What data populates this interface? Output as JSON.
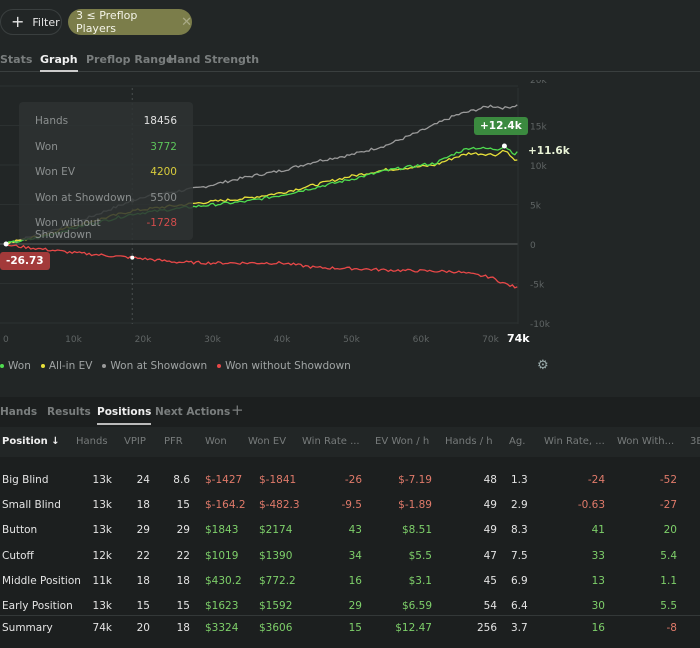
{
  "toolbar": {
    "filter_label": "Filter",
    "filter_chip": "3 ≤ Preflop Players"
  },
  "tabs": [
    "Stats",
    "Graph",
    "Preflop Range",
    "Hand Strength"
  ],
  "active_tab": "Graph",
  "tooltip": {
    "rows": [
      {
        "label": "Hands",
        "value": "18456",
        "color": "#e0e0e0"
      },
      {
        "label": "Won",
        "value": "3772",
        "color": "#5cc45a"
      },
      {
        "label": "Won EV",
        "value": "4200",
        "color": "#d8cc3c"
      },
      {
        "label": "Won at Showdown",
        "value": "5500",
        "color": "#8a8e8e"
      },
      {
        "label": "Won without Showdown",
        "value": "-1728",
        "color": "#d24c4c"
      }
    ]
  },
  "badges": {
    "start": "-26.73",
    "peak": "+12.4k",
    "end": "+11.6k"
  },
  "legend": [
    {
      "label": "Won",
      "color": "#4fdc4f"
    },
    {
      "label": "All-in EV",
      "color": "#e8e03a"
    },
    {
      "label": "Won at Showdown",
      "color": "#9a9a9a"
    },
    {
      "label": "Won without Showdown",
      "color": "#e84848"
    }
  ],
  "chart_data": {
    "type": "line",
    "x_ticks": [
      "0",
      "10k",
      "20k",
      "30k",
      "40k",
      "50k",
      "60k",
      "70k",
      "74k"
    ],
    "y_ticks": [
      "20k",
      "15k",
      "10k",
      "5k",
      "0",
      "-5k",
      "-10k"
    ],
    "xlim": [
      0,
      74000
    ],
    "ylim": [
      -10000,
      20000
    ],
    "series": [
      {
        "name": "Won at Showdown",
        "color": "#9a9a9a",
        "x": [
          0,
          5,
          10,
          18.5,
          20,
          28,
          35,
          40,
          45,
          50,
          55,
          60,
          65,
          70,
          72,
          74
        ],
        "y": [
          0,
          1.2,
          2.6,
          5.5,
          6,
          7.1,
          8.5,
          9.3,
          10.5,
          11.3,
          12.5,
          14.3,
          16.3,
          17.5,
          17.2,
          17.6
        ]
      },
      {
        "name": "All-in EV",
        "color": "#e8e03a",
        "x": [
          0,
          5,
          10,
          18.5,
          28,
          35,
          40,
          50,
          55,
          60,
          62,
          65,
          67,
          71,
          72,
          73.5,
          74
        ],
        "y": [
          0,
          1,
          2.3,
          4.2,
          5.2,
          5.8,
          6.5,
          8.6,
          9.4,
          9.8,
          10,
          11,
          11.5,
          11.3,
          12,
          10.5,
          10.9
        ]
      },
      {
        "name": "Won",
        "color": "#4fdc4f",
        "x": [
          0,
          5,
          10,
          18.5,
          28,
          35,
          40,
          50,
          55,
          60,
          62,
          65,
          67,
          71,
          72,
          73.5,
          74
        ],
        "y": [
          0,
          0.8,
          2,
          3.8,
          4.8,
          5.4,
          6.2,
          8.2,
          9.3,
          10,
          10.2,
          11.5,
          12.2,
          12,
          12.4,
          11.4,
          11.6
        ]
      },
      {
        "name": "Won without Showdown",
        "color": "#e84848",
        "x": [
          0,
          1,
          5,
          10,
          18.5,
          25,
          30,
          40,
          45,
          50,
          55,
          60,
          65,
          70,
          72,
          74
        ],
        "y": [
          0,
          -0.2,
          -0.6,
          -1.1,
          -1.73,
          -2.3,
          -2.4,
          -2.4,
          -3,
          -3.1,
          -3.3,
          -3.4,
          -3.5,
          -4.2,
          -5,
          -5.6
        ]
      }
    ],
    "crosshair_x": 18.456
  },
  "bottom_tabs": [
    "Hands",
    "Results",
    "Positions",
    "Next Actions"
  ],
  "table": {
    "columns": [
      "Position ↓",
      "Hands",
      "VPIP",
      "PFR",
      "Won",
      "Won EV",
      "Win Rate ...",
      "EV Won / h",
      "Hands / h",
      "Ag.",
      "Win Rate, ...",
      "Won With...",
      "3B"
    ],
    "rows": [
      [
        "Big Blind",
        "13k",
        "24",
        "8.6",
        "$-1427",
        "$-1841",
        "-26",
        "$-7.19",
        "48",
        "1.3",
        "-24",
        "-52"
      ],
      [
        "Small Blind",
        "13k",
        "18",
        "15",
        "$-164.2",
        "$-482.3",
        "-9.5",
        "$-1.89",
        "49",
        "2.9",
        "-0.63",
        "-27"
      ],
      [
        "Button",
        "13k",
        "29",
        "29",
        "$1843",
        "$2174",
        "43",
        "$8.51",
        "49",
        "8.3",
        "41",
        "20"
      ],
      [
        "Cutoff",
        "12k",
        "22",
        "22",
        "$1019",
        "$1390",
        "34",
        "$5.5",
        "47",
        "7.5",
        "33",
        "5.4"
      ],
      [
        "Middle Position",
        "11k",
        "18",
        "18",
        "$430.2",
        "$772.2",
        "16",
        "$3.1",
        "45",
        "6.9",
        "13",
        "1.1"
      ],
      [
        "Early Position",
        "13k",
        "15",
        "15",
        "$1623",
        "$1592",
        "29",
        "$6.59",
        "54",
        "6.4",
        "30",
        "5.5"
      ],
      [
        "Summary",
        "74k",
        "20",
        "18",
        "$3324",
        "$3606",
        "15",
        "$12.47",
        "256",
        "3.7",
        "16",
        "-8"
      ]
    ]
  }
}
